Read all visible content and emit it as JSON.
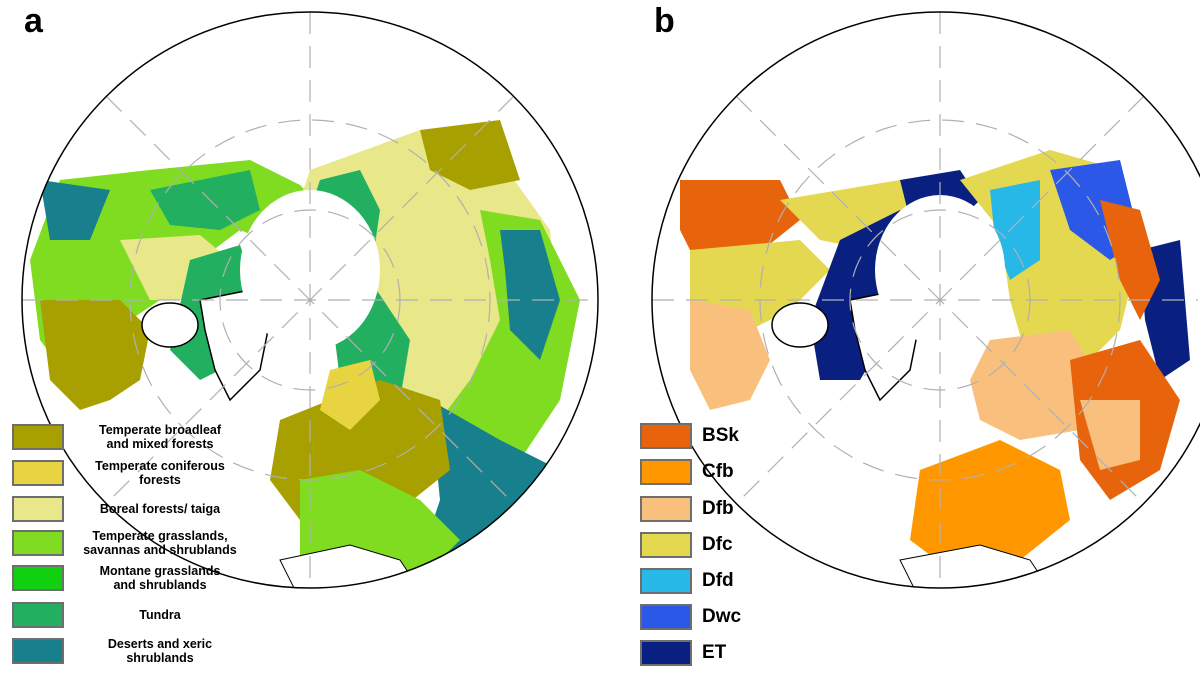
{
  "panels": {
    "a": {
      "label": "a",
      "legend": [
        {
          "line1": "Temperate broadleaf",
          "line2": "and mixed forests",
          "color": "#a8a000"
        },
        {
          "line1": "Temperate coniferous",
          "line2": "forests",
          "color": "#e8d440"
        },
        {
          "line1": "Boreal forests/ taiga",
          "line2": "",
          "color": "#e8e88a"
        },
        {
          "line1": "Temperate grasslands,",
          "line2": "savannas and shrublands",
          "color": "#80dc20"
        },
        {
          "line1": "Montane grasslands",
          "line2": "and shrublands",
          "color": "#10d010"
        },
        {
          "line1": "Tundra",
          "line2": "",
          "color": "#22b060"
        },
        {
          "line1": "Deserts and xeric",
          "line2": "shrublands",
          "color": "#18808c"
        }
      ]
    },
    "b": {
      "label": "b",
      "legend": [
        {
          "code": "BSk",
          "color": "#e8640c"
        },
        {
          "code": "Cfb",
          "color": "#ff9800"
        },
        {
          "code": "Dfb",
          "color": "#f8c07c"
        },
        {
          "code": "Dfc",
          "color": "#e4d850"
        },
        {
          "code": "Dfd",
          "color": "#28b8e8"
        },
        {
          "code": "Dwc",
          "color": "#2c58e8"
        },
        {
          "code": "ET",
          "color": "#0a2080"
        }
      ]
    }
  }
}
